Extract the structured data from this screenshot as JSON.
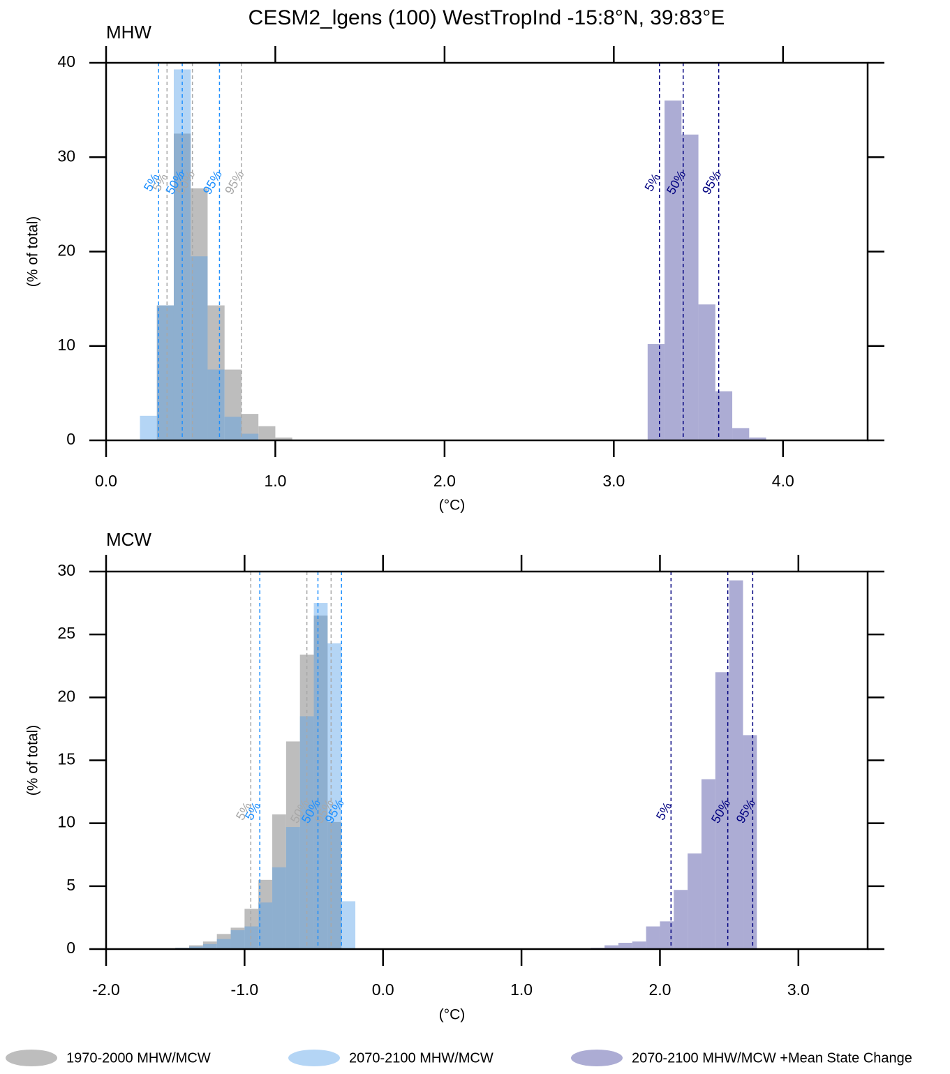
{
  "title": "CESM2_lgens (100) WestTropInd  -15:8°N, 39:83°E",
  "chart_data": [
    {
      "type": "histogram",
      "label": "MHW",
      "xlabel": "(°C)",
      "ylabel": "(% of total)",
      "xlim": [
        0,
        4.5
      ],
      "ylim": [
        0,
        40
      ],
      "xticks": [
        {
          "value": 0,
          "label": "0.0"
        },
        {
          "value": 1,
          "label": "1.0"
        },
        {
          "value": 2,
          "label": "2.0"
        },
        {
          "value": 3,
          "label": "3.0"
        },
        {
          "value": 4,
          "label": "4.0"
        }
      ],
      "yticks": [
        0,
        10,
        20,
        30,
        40
      ],
      "series": [
        {
          "name": "1970-2000 MHW/MCW",
          "color": "#bdbdbd",
          "line_color": "#a8a8a8",
          "bins": [
            0.2,
            0.3,
            0.4,
            0.5,
            0.6,
            0.7,
            0.8,
            0.9,
            1.0,
            1.1
          ],
          "values": [
            0,
            14.3,
            32.5,
            26.7,
            14.3,
            7.5,
            2.8,
            1.5,
            0.3
          ],
          "percentiles": [
            {
              "label": "5%",
              "value": 0.36
            },
            {
              "label": "50%",
              "value": 0.51
            },
            {
              "label": "95%",
              "value": 0.8
            }
          ]
        },
        {
          "name": "2070-2100 MHW/MCW",
          "color": "#4d9be6",
          "line_color": "#1e90ff",
          "bins": [
            0.2,
            0.3,
            0.4,
            0.5,
            0.6,
            0.7,
            0.8,
            0.9,
            1.0,
            1.1
          ],
          "values": [
            2.6,
            14.3,
            39.3,
            19.5,
            7.5,
            2.5,
            0.7,
            0,
            0
          ],
          "percentiles": [
            {
              "label": "5%",
              "value": 0.31
            },
            {
              "label": "50%",
              "value": 0.45
            },
            {
              "label": "95%",
              "value": 0.67
            }
          ]
        },
        {
          "name": "2070-2100 MHW/MCW +Mean State Change",
          "color": "#a3a3cf",
          "line_color": "#000080",
          "bins": [
            3.2,
            3.3,
            3.4,
            3.5,
            3.6,
            3.7,
            3.8,
            3.9
          ],
          "values": [
            10.2,
            36,
            32.4,
            14.4,
            5.2,
            1.3,
            0.3
          ],
          "percentiles": [
            {
              "label": "5%",
              "value": 3.27
            },
            {
              "label": "50%",
              "value": 3.41
            },
            {
              "label": "95%",
              "value": 3.62
            }
          ]
        }
      ]
    },
    {
      "type": "histogram",
      "label": "MCW",
      "xlabel": "(°C)",
      "ylabel": "(% of total)",
      "xlim": [
        -2,
        3.5
      ],
      "ylim": [
        0,
        30
      ],
      "xticks": [
        {
          "value": -2,
          "label": "-2.0"
        },
        {
          "value": -1,
          "label": "-1.0"
        },
        {
          "value": 0,
          "label": "0.0"
        },
        {
          "value": 1,
          "label": "1.0"
        },
        {
          "value": 2,
          "label": "2.0"
        },
        {
          "value": 3,
          "label": "3.0"
        }
      ],
      "yticks": [
        0,
        5,
        10,
        15,
        20,
        25,
        30
      ],
      "series": [
        {
          "name": "1970-2000 MHW/MCW",
          "color": "#bdbdbd",
          "line_color": "#a8a8a8",
          "bins": [
            -1.7,
            -1.6,
            -1.5,
            -1.4,
            -1.3,
            -1.2,
            -1.1,
            -1.0,
            -0.9,
            -0.8,
            -0.7,
            -0.6,
            -0.5,
            -0.4,
            -0.3,
            -0.2
          ],
          "values": [
            0.05,
            0.05,
            0.1,
            0.3,
            0.6,
            1.2,
            1.7,
            3.2,
            5.5,
            10.7,
            16.5,
            23.4,
            26.5,
            10.1,
            0
          ],
          "percentiles": [
            {
              "label": "5%",
              "value": -0.955
            },
            {
              "label": "50%",
              "value": -0.55
            },
            {
              "label": "95%",
              "value": -0.375
            }
          ]
        },
        {
          "name": "2070-2100 MHW/MCW",
          "color": "#4d9be6",
          "line_color": "#1e90ff",
          "bins": [
            -1.7,
            -1.6,
            -1.5,
            -1.4,
            -1.3,
            -1.2,
            -1.1,
            -1.0,
            -0.9,
            -0.8,
            -0.7,
            -0.6,
            -0.5,
            -0.4,
            -0.3,
            -0.2
          ],
          "values": [
            0,
            0,
            0.1,
            0.2,
            0.4,
            0.8,
            1.5,
            1.8,
            3.7,
            6.5,
            9.7,
            18.5,
            27.5,
            24.3,
            3.8
          ],
          "percentiles": [
            {
              "label": "5%",
              "value": -0.89
            },
            {
              "label": "50%",
              "value": -0.47
            },
            {
              "label": "95%",
              "value": -0.3
            }
          ]
        },
        {
          "name": "2070-2100 MHW/MCW +Mean State Change",
          "color": "#a3a3cf",
          "line_color": "#000080",
          "bins": [
            1.3,
            1.4,
            1.5,
            1.6,
            1.7,
            1.8,
            1.9,
            2.0,
            2.1,
            2.2,
            2.3,
            2.4,
            2.5,
            2.6,
            2.7
          ],
          "values": [
            0.02,
            0.05,
            0.1,
            0.3,
            0.5,
            0.6,
            1.8,
            2.2,
            4.7,
            7.6,
            13.5,
            22,
            29.3,
            17
          ],
          "percentiles": [
            {
              "label": "5%",
              "value": 2.08
            },
            {
              "label": "50%",
              "value": 2.49
            },
            {
              "label": "95%",
              "value": 2.67
            }
          ]
        }
      ]
    }
  ]
}
